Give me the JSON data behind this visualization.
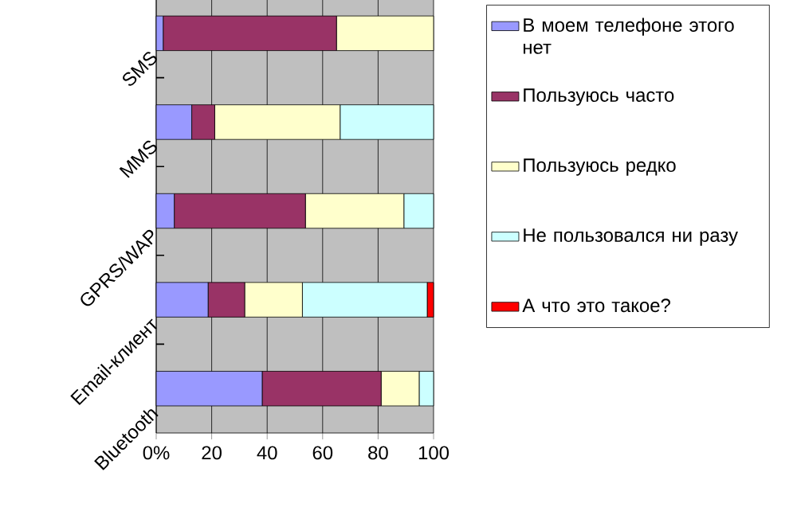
{
  "chart_data": {
    "type": "bar",
    "orientation": "horizontal",
    "stacked": true,
    "categories": [
      "SMS",
      "MMS",
      "GPRS/WAP",
      "Email-клиент",
      "Bluetooth"
    ],
    "series": [
      {
        "name": "В моем телефоне этого нет",
        "color": "#9999ff",
        "values": [
          2.5,
          12.8,
          6.5,
          18.7,
          38.2
        ]
      },
      {
        "name": "Пользуюсь часто",
        "color": "#993366",
        "values": [
          62.5,
          8.3,
          47.3,
          13.2,
          42.9
        ]
      },
      {
        "name": "Пользуюсь редко",
        "color": "#ffffcc",
        "values": [
          35,
          45.2,
          35.5,
          20.8,
          13.7
        ]
      },
      {
        "name": "Не пользовался ни разу",
        "color": "#ccffff",
        "values": [
          null,
          33.7,
          10.7,
          45,
          5.2
        ]
      },
      {
        "name": "А что это такое?",
        "color": "#ff0000",
        "values": [
          null,
          null,
          null,
          2.3,
          null
        ]
      }
    ],
    "xlim": [
      0,
      100
    ],
    "xticks": [
      {
        "value": 0,
        "label": "0%"
      },
      20,
      40,
      60,
      80,
      100
    ],
    "grid": "x",
    "legend": "right"
  }
}
